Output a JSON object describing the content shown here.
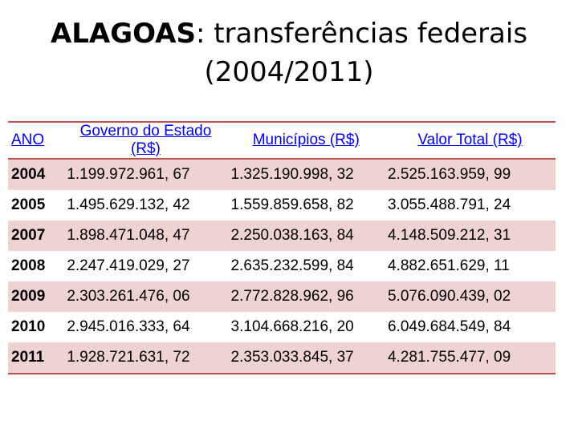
{
  "title": {
    "bold_part": "ALAGOAS",
    "rest": ": transferências federais",
    "line2": "(2004/2011)"
  },
  "table": {
    "headers": [
      "ANO",
      "Governo do Estado (R$)",
      "Municípios (R$)",
      "Valor Total (R$)"
    ],
    "rows": [
      [
        "2004",
        "1.199.972.961, 67",
        "1.325.190.998, 32",
        "2.525.163.959, 99"
      ],
      [
        "2005",
        "1.495.629.132, 42",
        "1.559.859.658, 82",
        "3.055.488.791, 24"
      ],
      [
        "2007",
        "1.898.471.048, 47",
        "2.250.038.163, 84",
        "4.148.509.212, 31"
      ],
      [
        "2008",
        "2.247.419.029, 27",
        "2.635.232.599, 84",
        "4.882.651.629, 11"
      ],
      [
        "2009",
        "2.303.261.476, 06",
        "2.772.828.962, 96",
        "5.076.090.439, 02"
      ],
      [
        "2010",
        "2.945.016.333, 64",
        "3.104.668.216, 20",
        "6.049.684.549, 84"
      ],
      [
        "2011",
        "1.928.721.631, 72",
        "2.353.033.845, 37",
        "4.281.755.477, 09"
      ]
    ]
  },
  "colors": {
    "accent_border": "#c0504d",
    "row_band": "#efd3d2",
    "header_link": "#0000ee"
  }
}
